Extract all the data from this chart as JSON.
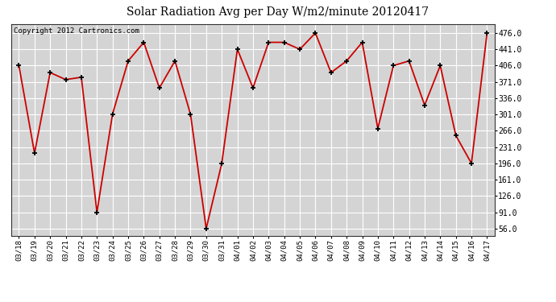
{
  "title": "Solar Radiation Avg per Day W/m2/minute 20120417",
  "copyright": "Copyright 2012 Cartronics.com",
  "labels": [
    "03/18",
    "03/19",
    "03/20",
    "03/21",
    "03/22",
    "03/23",
    "03/24",
    "03/25",
    "03/26",
    "03/27",
    "03/28",
    "03/29",
    "03/30",
    "03/31",
    "04/01",
    "04/02",
    "04/03",
    "04/04",
    "04/05",
    "04/06",
    "04/07",
    "04/08",
    "04/09",
    "04/10",
    "04/11",
    "04/12",
    "04/13",
    "04/14",
    "04/15",
    "04/16",
    "04/17"
  ],
  "values": [
    406,
    218,
    391,
    376,
    381,
    91,
    302,
    416,
    456,
    358,
    416,
    301,
    56,
    196,
    441,
    358,
    456,
    456,
    441,
    476,
    391,
    416,
    456,
    271,
    406,
    416,
    321,
    406,
    256,
    196,
    476
  ],
  "line_color": "#cc0000",
  "marker_color": "#000000",
  "bg_color": "#ffffff",
  "plot_bg_color": "#d4d4d4",
  "grid_color": "#ffffff",
  "yticks": [
    56.0,
    91.0,
    126.0,
    161.0,
    196.0,
    231.0,
    266.0,
    301.0,
    336.0,
    371.0,
    406.0,
    441.0,
    476.0
  ],
  "ylim": [
    41,
    495
  ],
  "title_fontsize": 10,
  "copyright_fontsize": 6.5,
  "tick_fontsize": 6.5,
  "ytick_fontsize": 7
}
